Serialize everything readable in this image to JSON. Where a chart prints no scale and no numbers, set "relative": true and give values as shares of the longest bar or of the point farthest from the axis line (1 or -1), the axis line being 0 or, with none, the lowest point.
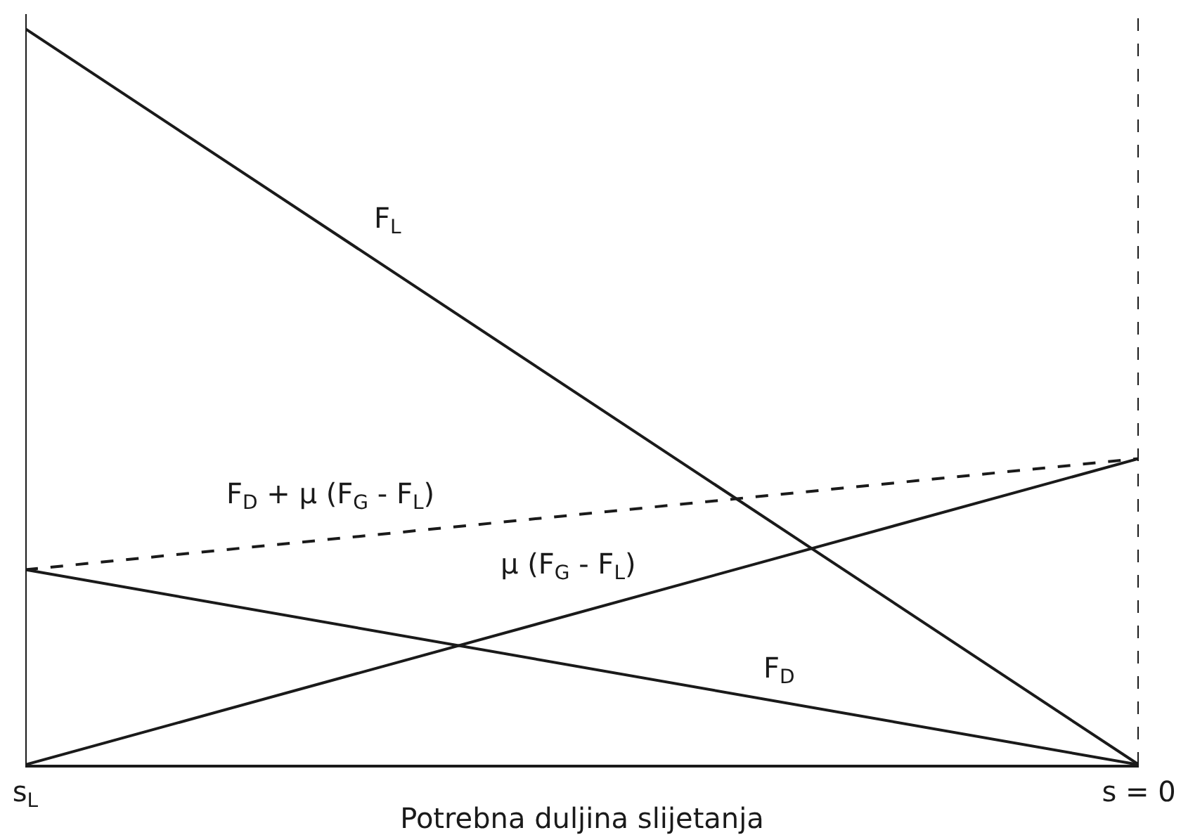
{
  "chart_data": {
    "type": "line",
    "relative": true,
    "categories": [
      "s$_{L}$",
      "s = 0"
    ],
    "xlabel": "Potrebna duljina slijetanja",
    "legend": false,
    "grid": false,
    "marker": "none",
    "series": [
      {
        "name": "F$_{L}$",
        "color": "#1a1a1a",
        "values": [
          1,
          0
        ]
      },
      {
        "name": "F$_{D}$ + μ (F$_{G}$ - F$_{L}$)",
        "color": "#1a1a1a",
        "values": [
          0.265,
          0.416
        ],
        "line_style": "dashed"
      },
      {
        "name": "μ (F$_{G}$ - F$_{L}$)",
        "color": "#1a1a1a",
        "values": [
          0,
          0.416
        ]
      },
      {
        "name": "F$_{D}$",
        "color": "#1a1a1a",
        "values": [
          0.265,
          0
        ]
      }
    ],
    "ref_lines": [
      {
        "axis": "x",
        "value": "s$_{L}$",
        "line_style": "solid",
        "color": "#1a1a1a"
      },
      {
        "axis": "x",
        "value": "s = 0",
        "line_style": "dashed",
        "color": "#1a1a1a"
      }
    ]
  }
}
